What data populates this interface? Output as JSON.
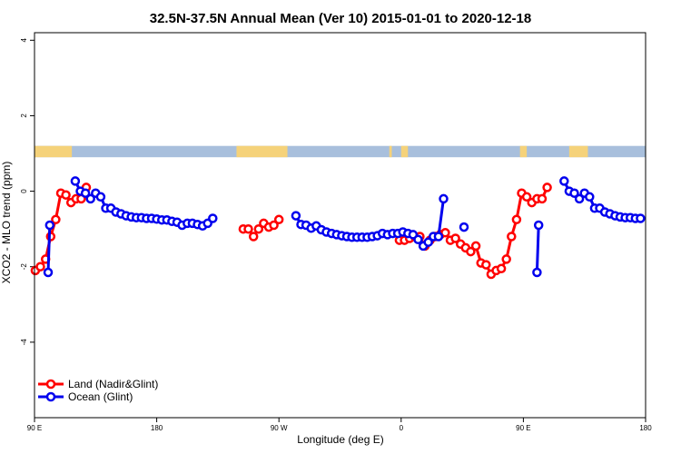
{
  "chart_data": {
    "type": "line",
    "title": "32.5N-37.5N Annual Mean (Ver 10)   2015-01-01 to 2020-12-18",
    "xlabel": "Longitude (deg E)",
    "ylabel": "XCO2 - MLO trend (ppm)",
    "xlim": [
      90,
      450
    ],
    "ylim": [
      -6,
      4.2
    ],
    "x_ticks": [
      {
        "value": 90,
        "label": "90 E"
      },
      {
        "value": 162,
        "label": "180"
      },
      {
        "value": 234,
        "label": "90 W"
      },
      {
        "value": 306,
        "label": "0"
      },
      {
        "value": 378,
        "label": "90 E"
      },
      {
        "value": 450,
        "label": "180"
      }
    ],
    "y_ticks": [
      {
        "value": 4,
        "label": "4"
      },
      {
        "value": 2,
        "label": "2"
      },
      {
        "value": 0,
        "label": "0"
      },
      {
        "value": -2,
        "label": "-2"
      },
      {
        "value": -4,
        "label": "-4"
      }
    ],
    "land_band": {
      "y_range": [
        0.9,
        1.2
      ],
      "ocean_color": "#a8bfdc",
      "land_color": "#f5d27a",
      "land_segments": [
        [
          90,
          112
        ],
        [
          209,
          239
        ],
        [
          299,
          300.5
        ],
        [
          306,
          310
        ],
        [
          376,
          380
        ],
        [
          405,
          416
        ]
      ]
    },
    "legend": {
      "position": "bottom-left"
    },
    "series": [
      {
        "name": "Land (Nadir&Glint)",
        "color": "#ff0000",
        "segments": [
          [
            [
              90.5,
              -2.1
            ],
            [
              93.5,
              -2.0
            ],
            [
              96.5,
              -1.8
            ],
            [
              99.5,
              -1.2
            ],
            [
              102.5,
              -0.75
            ],
            [
              105.5,
              -0.05
            ],
            [
              108.5,
              -0.1
            ],
            [
              111.5,
              -0.3
            ],
            [
              114.5,
              -0.2
            ],
            [
              117.5,
              -0.2
            ],
            [
              120.5,
              0.1
            ]
          ],
          [
            [
              213,
              -1.0
            ],
            [
              216,
              -1.0
            ],
            [
              219,
              -1.2
            ],
            [
              222,
              -1.0
            ],
            [
              225,
              -0.85
            ],
            [
              228,
              -0.95
            ],
            [
              231,
              -0.9
            ],
            [
              234,
              -0.75
            ]
          ],
          [
            [
              305,
              -1.3
            ],
            [
              308,
              -1.3
            ],
            [
              311,
              -1.25
            ],
            [
              314,
              -1.2
            ],
            [
              317,
              -1.2
            ],
            [
              320,
              -1.45
            ],
            [
              323,
              -1.3
            ],
            [
              326,
              -1.2
            ],
            [
              329,
              -1.15
            ],
            [
              332,
              -1.1
            ],
            [
              335,
              -1.3
            ],
            [
              338,
              -1.25
            ],
            [
              341,
              -1.4
            ],
            [
              344,
              -1.5
            ],
            [
              347,
              -1.6
            ],
            [
              350,
              -1.45
            ],
            [
              353,
              -1.9
            ],
            [
              356,
              -1.95
            ],
            [
              359,
              -2.2
            ],
            [
              362,
              -2.1
            ],
            [
              365,
              -2.05
            ],
            [
              368,
              -1.8
            ],
            [
              371,
              -1.2
            ],
            [
              374,
              -0.75
            ],
            [
              377,
              -0.05
            ],
            [
              380,
              -0.15
            ],
            [
              383,
              -0.3
            ],
            [
              386,
              -0.2
            ],
            [
              389,
              -0.2
            ],
            [
              392,
              0.1
            ]
          ]
        ]
      },
      {
        "name": "Ocean (Glint)",
        "color": "#0000ee",
        "segments": [
          [
            [
              98,
              -2.15
            ],
            [
              99,
              -0.9
            ]
          ],
          [
            [
              114,
              0.27
            ],
            [
              117,
              0.0
            ],
            [
              120,
              -0.05
            ],
            [
              123,
              -0.2
            ],
            [
              126,
              -0.05
            ],
            [
              129,
              -0.15
            ],
            [
              132,
              -0.45
            ],
            [
              135,
              -0.45
            ],
            [
              138,
              -0.55
            ],
            [
              141,
              -0.6
            ],
            [
              144,
              -0.65
            ],
            [
              147,
              -0.68
            ],
            [
              150,
              -0.7
            ],
            [
              153,
              -0.7
            ],
            [
              156,
              -0.72
            ],
            [
              159,
              -0.72
            ],
            [
              162,
              -0.74
            ],
            [
              165,
              -0.76
            ],
            [
              168,
              -0.76
            ],
            [
              171,
              -0.8
            ],
            [
              174,
              -0.82
            ],
            [
              177,
              -0.9
            ],
            [
              180,
              -0.85
            ],
            [
              183,
              -0.85
            ],
            [
              186,
              -0.88
            ],
            [
              189,
              -0.92
            ],
            [
              192,
              -0.85
            ],
            [
              195,
              -0.72
            ]
          ],
          [
            [
              244,
              -0.65
            ],
            [
              247,
              -0.88
            ],
            [
              250,
              -0.9
            ],
            [
              253,
              -0.98
            ],
            [
              256,
              -0.92
            ],
            [
              259,
              -1.02
            ],
            [
              262,
              -1.08
            ],
            [
              265,
              -1.12
            ],
            [
              268,
              -1.15
            ],
            [
              271,
              -1.18
            ],
            [
              274,
              -1.2
            ],
            [
              277,
              -1.22
            ],
            [
              280,
              -1.22
            ],
            [
              283,
              -1.22
            ],
            [
              286,
              -1.22
            ],
            [
              289,
              -1.2
            ],
            [
              292,
              -1.18
            ],
            [
              295,
              -1.12
            ],
            [
              298,
              -1.15
            ],
            [
              301,
              -1.12
            ],
            [
              304,
              -1.12
            ],
            [
              307,
              -1.08
            ],
            [
              310,
              -1.12
            ],
            [
              313,
              -1.15
            ],
            [
              316,
              -1.28
            ],
            [
              319,
              -1.45
            ],
            [
              322,
              -1.35
            ],
            [
              325,
              -1.2
            ],
            [
              328,
              -1.2
            ],
            [
              331,
              -0.2
            ]
          ],
          [
            [
              343,
              -0.95
            ]
          ],
          [
            [
              386,
              -2.15
            ],
            [
              387,
              -0.9
            ]
          ],
          [
            [
              402,
              0.27
            ],
            [
              405,
              0.0
            ],
            [
              408,
              -0.05
            ],
            [
              411,
              -0.2
            ],
            [
              414,
              -0.05
            ],
            [
              417,
              -0.15
            ],
            [
              420,
              -0.45
            ],
            [
              423,
              -0.45
            ],
            [
              426,
              -0.55
            ],
            [
              429,
              -0.6
            ],
            [
              432,
              -0.65
            ],
            [
              435,
              -0.68
            ],
            [
              438,
              -0.7
            ],
            [
              441,
              -0.7
            ],
            [
              444,
              -0.72
            ],
            [
              447,
              -0.72
            ]
          ]
        ]
      }
    ]
  }
}
